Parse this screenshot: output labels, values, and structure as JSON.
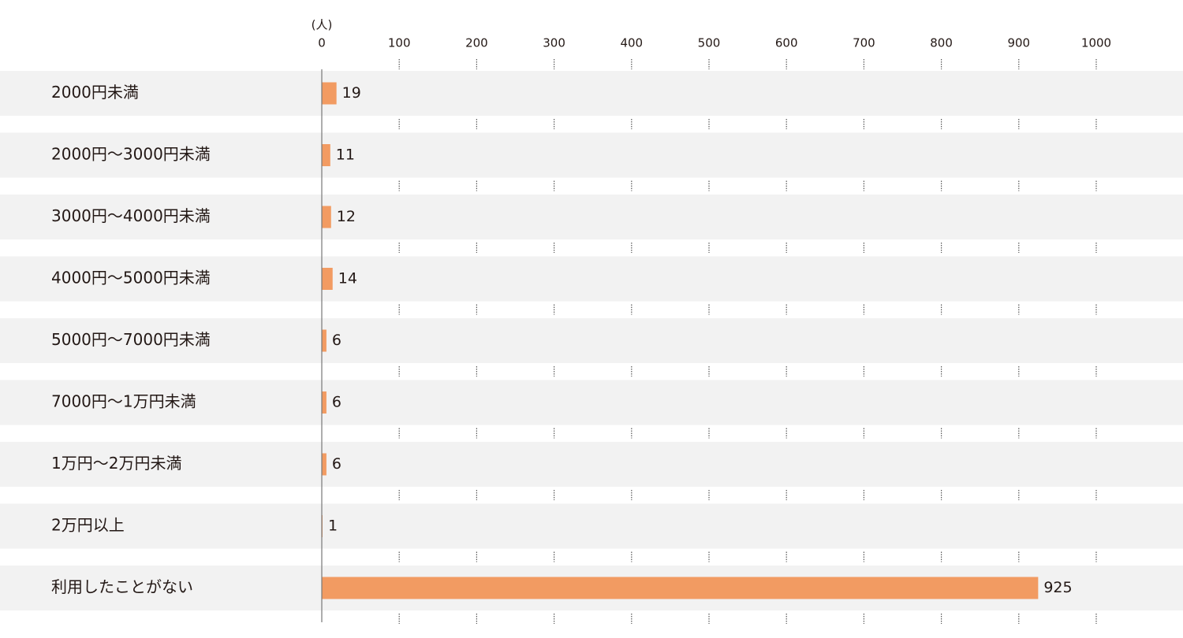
{
  "chart_data": {
    "type": "bar",
    "orientation": "horizontal",
    "unit_label": "(人)",
    "categories": [
      "2000円未満",
      "2000円〜3000円未満",
      "3000円〜4000円未満",
      "4000円〜5000円未満",
      "5000円〜7000円未満",
      "7000円〜1万円未満",
      "1万円〜2万円未満",
      "2万円以上",
      "利用したことがない"
    ],
    "values": [
      19,
      11,
      12,
      14,
      6,
      6,
      6,
      1,
      925
    ],
    "color": "#f29b62",
    "xlim": [
      0,
      1000
    ],
    "xticks": [
      0,
      100,
      200,
      300,
      400,
      500,
      600,
      700,
      800,
      900,
      1000
    ],
    "grid": true
  }
}
